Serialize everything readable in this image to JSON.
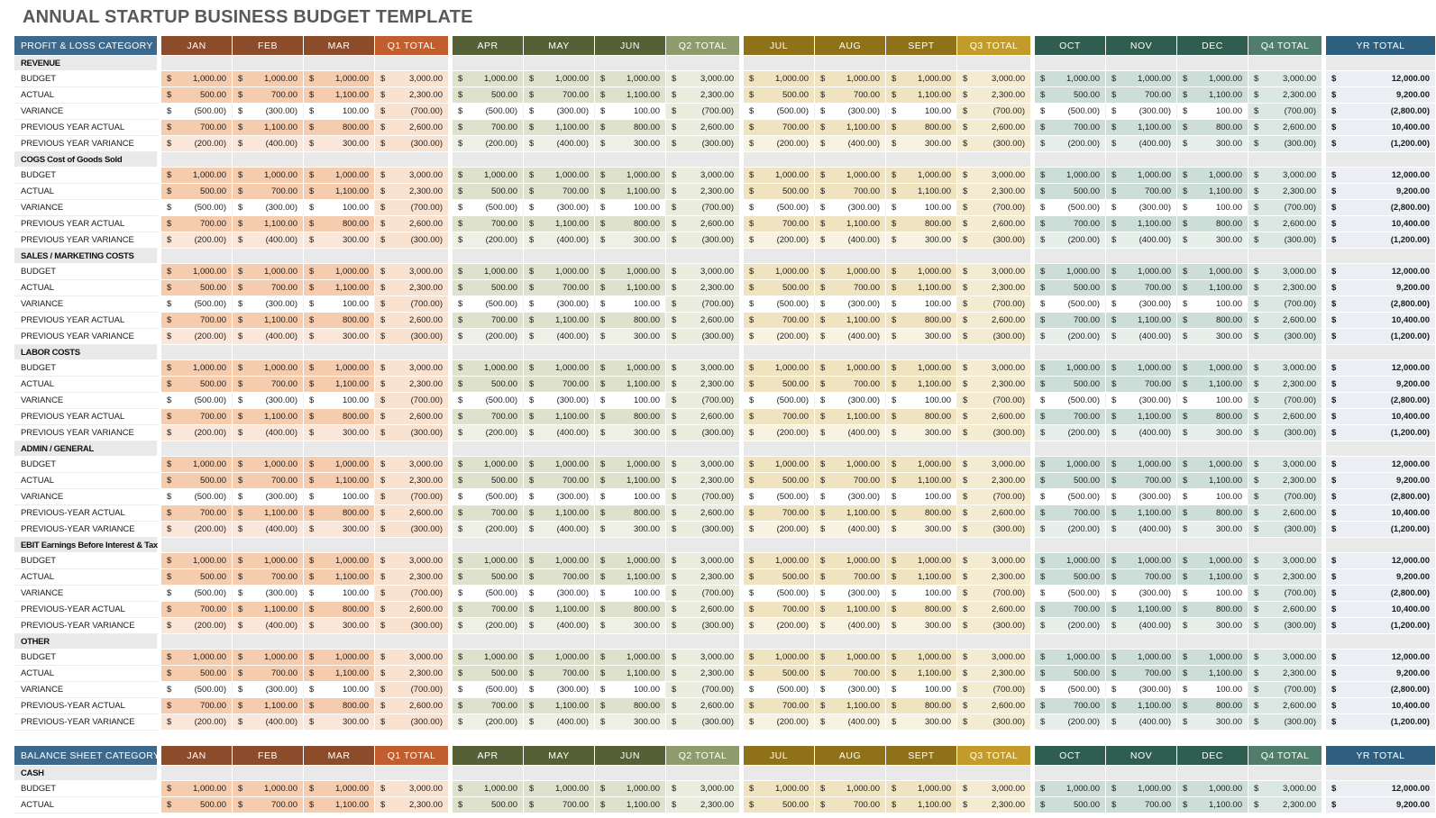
{
  "page": {
    "title": "ANNUAL STARTUP BUSINESS BUDGET TEMPLATE"
  },
  "columns": {
    "month_labels": [
      "JAN",
      "FEB",
      "MAR",
      "APR",
      "MAY",
      "JUN",
      "JUL",
      "AUG",
      "SEPT",
      "OCT",
      "NOV",
      "DEC"
    ],
    "quarter_total_labels": [
      "Q1 TOTAL",
      "Q2 TOTAL",
      "Q3 TOTAL",
      "Q4 TOTAL"
    ],
    "year_total_label": "YR TOTAL",
    "currency_symbol": "$"
  },
  "colors": {
    "title_color": "#58595B",
    "category_header_bg": "#3C698C",
    "year_total_header_bg": "#2E5F7E",
    "year_total_cell_bg": "#EBEEF2",
    "section_row_bg": "#E9E9E9",
    "quarters": [
      {
        "name": "Q1",
        "month_header_bg": "#8C4B2B",
        "total_header_bg": "#C05E2F",
        "cell_medium": "#F6CCAF",
        "cell_light": "#FBE7DA",
        "total_cell": "#FAE2D1"
      },
      {
        "name": "Q2",
        "month_header_bg": "#566036",
        "total_header_bg": "#8E9B6D",
        "cell_medium": "#DEE1CC",
        "cell_light": "#EFF0E5",
        "total_cell": "#EAECDD"
      },
      {
        "name": "Q3",
        "month_header_bg": "#8F7119",
        "total_header_bg": "#C39B2B",
        "cell_medium": "#EFE3C0",
        "cell_light": "#F8F2E1",
        "total_cell": "#F4EBD1"
      },
      {
        "name": "Q4",
        "month_header_bg": "#2F5E50",
        "total_header_bg": "#517E6C",
        "cell_medium": "#CDDDD7",
        "cell_light": "#E7EFEB",
        "total_cell": "#DBE7E2"
      }
    ]
  },
  "row_types": {
    "budget": {
      "shade": "medium",
      "months": [
        "1,000.00",
        "1,000.00",
        "1,000.00",
        "1,000.00",
        "1,000.00",
        "1,000.00",
        "1,000.00",
        "1,000.00",
        "1,000.00",
        "1,000.00",
        "1,000.00",
        "1,000.00"
      ],
      "quarter_totals": [
        "3,000.00",
        "3,000.00",
        "3,000.00",
        "3,000.00"
      ],
      "year_total": "12,000.00"
    },
    "actual": {
      "shade": "medium",
      "months": [
        "500.00",
        "700.00",
        "1,100.00",
        "500.00",
        "700.00",
        "1,100.00",
        "500.00",
        "700.00",
        "1,100.00",
        "500.00",
        "700.00",
        "1,100.00"
      ],
      "quarter_totals": [
        "2,300.00",
        "2,300.00",
        "2,300.00",
        "2,300.00"
      ],
      "year_total": "9,200.00"
    },
    "variance": {
      "shade": "white",
      "months": [
        "(500.00)",
        "(300.00)",
        "100.00",
        "(500.00)",
        "(300.00)",
        "100.00",
        "(500.00)",
        "(300.00)",
        "100.00",
        "(500.00)",
        "(300.00)",
        "100.00"
      ],
      "quarter_totals": [
        "(700.00)",
        "(700.00)",
        "(700.00)",
        "(700.00)"
      ],
      "year_total": "(2,800.00)"
    },
    "prev_actual": {
      "shade": "medium",
      "months": [
        "700.00",
        "1,100.00",
        "800.00",
        "700.00",
        "1,100.00",
        "800.00",
        "700.00",
        "1,100.00",
        "800.00",
        "700.00",
        "1,100.00",
        "800.00"
      ],
      "quarter_totals": [
        "2,600.00",
        "2,600.00",
        "2,600.00",
        "2,600.00"
      ],
      "year_total": "10,400.00"
    },
    "prev_variance": {
      "shade": "light",
      "months": [
        "(200.00)",
        "(400.00)",
        "300.00",
        "(200.00)",
        "(400.00)",
        "300.00",
        "(200.00)",
        "(400.00)",
        "300.00",
        "(200.00)",
        "(400.00)",
        "300.00"
      ],
      "quarter_totals": [
        "(300.00)",
        "(300.00)",
        "(300.00)",
        "(300.00)"
      ],
      "year_total": "(1,200.00)"
    }
  },
  "tables": [
    {
      "category_header": "PROFIT & LOSS CATEGORY",
      "sections": [
        {
          "name": "REVENUE",
          "rows": [
            {
              "label": "BUDGET",
              "type": "budget"
            },
            {
              "label": "ACTUAL",
              "type": "actual"
            },
            {
              "label": "VARIANCE",
              "type": "variance"
            },
            {
              "label": "PREVIOUS YEAR ACTUAL",
              "type": "prev_actual"
            },
            {
              "label": "PREVIOUS YEAR VARIANCE",
              "type": "prev_variance"
            }
          ]
        },
        {
          "name": "COGS Cost of Goods Sold",
          "rows": [
            {
              "label": "BUDGET",
              "type": "budget"
            },
            {
              "label": "ACTUAL",
              "type": "actual"
            },
            {
              "label": "VARIANCE",
              "type": "variance"
            },
            {
              "label": "PREVIOUS YEAR ACTUAL",
              "type": "prev_actual"
            },
            {
              "label": "PREVIOUS YEAR VARIANCE",
              "type": "prev_variance"
            }
          ]
        },
        {
          "name": "SALES / MARKETING COSTS",
          "rows": [
            {
              "label": "BUDGET",
              "type": "budget"
            },
            {
              "label": "ACTUAL",
              "type": "actual"
            },
            {
              "label": "VARIANCE",
              "type": "variance"
            },
            {
              "label": "PREVIOUS YEAR ACTUAL",
              "type": "prev_actual"
            },
            {
              "label": "PREVIOUS YEAR VARIANCE",
              "type": "prev_variance"
            }
          ]
        },
        {
          "name": "LABOR COSTS",
          "rows": [
            {
              "label": "BUDGET",
              "type": "budget"
            },
            {
              "label": "ACTUAL",
              "type": "actual"
            },
            {
              "label": "VARIANCE",
              "type": "variance"
            },
            {
              "label": "PREVIOUS YEAR ACTUAL",
              "type": "prev_actual"
            },
            {
              "label": "PREVIOUS YEAR VARIANCE",
              "type": "prev_variance"
            }
          ]
        },
        {
          "name": "ADMIN / GENERAL",
          "rows": [
            {
              "label": "BUDGET",
              "type": "budget"
            },
            {
              "label": "ACTUAL",
              "type": "actual"
            },
            {
              "label": "VARIANCE",
              "type": "variance"
            },
            {
              "label": "PREVIOUS-YEAR ACTUAL",
              "type": "prev_actual"
            },
            {
              "label": "PREVIOUS-YEAR VARIANCE",
              "type": "prev_variance"
            }
          ]
        },
        {
          "name": "EBIT Earnings Before Interest & Taxes",
          "rows": [
            {
              "label": "BUDGET",
              "type": "budget"
            },
            {
              "label": "ACTUAL",
              "type": "actual"
            },
            {
              "label": "VARIANCE",
              "type": "variance"
            },
            {
              "label": "PREVIOUS-YEAR ACTUAL",
              "type": "prev_actual"
            },
            {
              "label": "PREVIOUS-YEAR VARIANCE",
              "type": "prev_variance"
            }
          ]
        },
        {
          "name": "OTHER",
          "rows": [
            {
              "label": "BUDGET",
              "type": "budget"
            },
            {
              "label": "ACTUAL",
              "type": "actual"
            },
            {
              "label": "VARIANCE",
              "type": "variance"
            },
            {
              "label": "PREVIOUS-YEAR ACTUAL",
              "type": "prev_actual"
            },
            {
              "label": "PREVIOUS-YEAR VARIANCE",
              "type": "prev_variance"
            }
          ]
        }
      ]
    },
    {
      "category_header": "BALANCE SHEET CATEGORY",
      "sections": [
        {
          "name": "CASH",
          "rows": [
            {
              "label": "BUDGET",
              "type": "budget"
            },
            {
              "label": "ACTUAL",
              "type": "actual"
            }
          ]
        }
      ]
    }
  ]
}
